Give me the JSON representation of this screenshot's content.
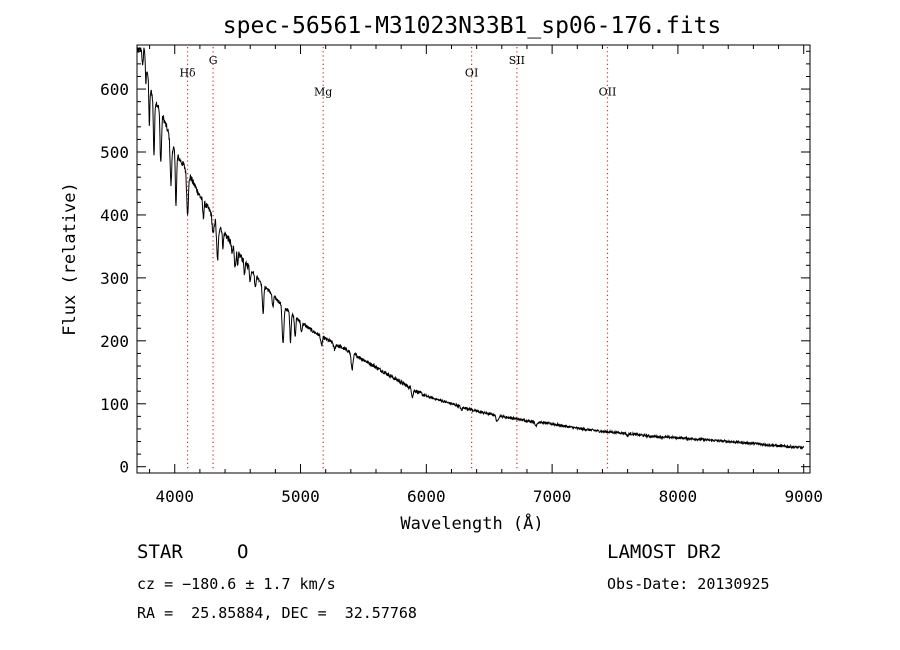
{
  "chart_data": {
    "type": "line",
    "title": "spec-56561-M31023N33B1_sp06-176.fits",
    "xlabel": "Wavelength (Å)",
    "ylabel": "Flux (relative)",
    "xlim": [
      3700,
      9050
    ],
    "ylim": [
      -10,
      670
    ],
    "xticks": [
      4000,
      5000,
      6000,
      7000,
      8000,
      9000
    ],
    "yticks": [
      0,
      100,
      200,
      300,
      400,
      500,
      600
    ],
    "xtick_labels": [
      "4000",
      "5000",
      "6000",
      "7000",
      "8000",
      "9000"
    ],
    "ytick_labels": [
      "0",
      "100",
      "200",
      "300",
      "400",
      "500",
      "600"
    ],
    "grid": false,
    "line_color": "#000000",
    "marker_color": "#cc3333",
    "line_markers": [
      {
        "label": "Hδ",
        "x": 4102,
        "label_y": 620
      },
      {
        "label": "G",
        "x": 4305,
        "label_y": 640
      },
      {
        "label": "Mg",
        "x": 5180,
        "label_y": 590
      },
      {
        "label": "OI",
        "x": 6360,
        "label_y": 620
      },
      {
        "label": "SII",
        "x": 6720,
        "label_y": 640
      },
      {
        "label": "OII",
        "x": 7440,
        "label_y": 590
      }
    ],
    "continuum": [
      [
        3700,
        660
      ],
      [
        3760,
        665
      ],
      [
        3800,
        600
      ],
      [
        3900,
        560
      ],
      [
        4000,
        500
      ],
      [
        4100,
        470
      ],
      [
        4200,
        430
      ],
      [
        4300,
        400
      ],
      [
        4400,
        370
      ],
      [
        4500,
        340
      ],
      [
        4600,
        315
      ],
      [
        4700,
        290
      ],
      [
        4800,
        268
      ],
      [
        4900,
        248
      ],
      [
        5000,
        230
      ],
      [
        5100,
        215
      ],
      [
        5200,
        203
      ],
      [
        5300,
        192
      ],
      [
        5400,
        182
      ],
      [
        5500,
        170
      ],
      [
        5600,
        158
      ],
      [
        5700,
        146
      ],
      [
        5800,
        134
      ],
      [
        5900,
        122
      ],
      [
        6000,
        112
      ],
      [
        6200,
        100
      ],
      [
        6400,
        88
      ],
      [
        6600,
        80
      ],
      [
        6800,
        73
      ],
      [
        7000,
        68
      ],
      [
        7200,
        61
      ],
      [
        7400,
        56
      ],
      [
        7600,
        53
      ],
      [
        7800,
        48
      ],
      [
        8000,
        46
      ],
      [
        8200,
        43
      ],
      [
        8400,
        40
      ],
      [
        8600,
        37
      ],
      [
        8800,
        33
      ],
      [
        9000,
        30
      ]
    ],
    "absorption_lines": [
      [
        3745,
        30,
        4
      ],
      [
        3770,
        40,
        4
      ],
      [
        3798,
        60,
        4
      ],
      [
        3835,
        90,
        5
      ],
      [
        3889,
        80,
        6
      ],
      [
        3970,
        70,
        6
      ],
      [
        4010,
        80,
        5
      ],
      [
        4102,
        65,
        7
      ],
      [
        4227,
        25,
        5
      ],
      [
        4305,
        30,
        7
      ],
      [
        4340,
        60,
        7
      ],
      [
        4383,
        25,
        5
      ],
      [
        4455,
        15,
        5
      ],
      [
        4480,
        30,
        5
      ],
      [
        4500,
        25,
        4
      ],
      [
        4555,
        20,
        5
      ],
      [
        4600,
        20,
        5
      ],
      [
        4640,
        20,
        5
      ],
      [
        4702,
        45,
        6
      ],
      [
        4780,
        20,
        5
      ],
      [
        4861,
        60,
        7
      ],
      [
        4920,
        45,
        5
      ],
      [
        4957,
        30,
        5
      ],
      [
        5007,
        15,
        5
      ],
      [
        5167,
        15,
        6
      ],
      [
        5270,
        10,
        6
      ],
      [
        5410,
        25,
        8
      ],
      [
        5890,
        12,
        6
      ],
      [
        6280,
        6,
        6
      ],
      [
        6563,
        10,
        8
      ],
      [
        6870,
        6,
        8
      ],
      [
        7600,
        4,
        8
      ]
    ],
    "noise_amplitude": 2.5
  },
  "footer": {
    "object_class": "STAR",
    "subclass": "O",
    "redshift": "cz = −180.6 ± 1.7 km/s",
    "coords": "RA =  25.85884, DEC =  32.57768",
    "survey": "LAMOST DR2",
    "obs_date": "Obs-Date: 20130925"
  }
}
